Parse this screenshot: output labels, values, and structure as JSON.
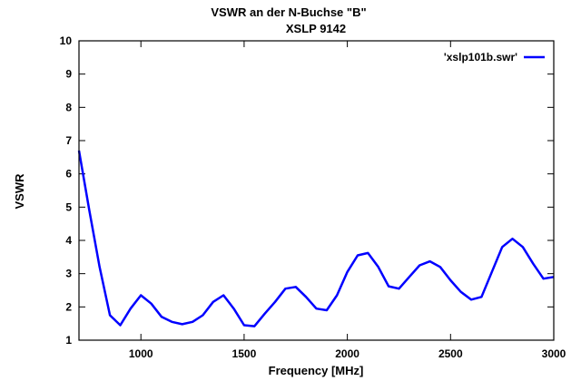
{
  "chart_data": {
    "type": "line",
    "title": "VSWR an der N-Buchse \"B\"",
    "subtitle": "XSLP 9142",
    "xlabel": "Frequency [MHz]",
    "ylabel": "VSWR",
    "xlim": [
      700,
      3000
    ],
    "ylim": [
      1,
      10
    ],
    "xticks": [
      1000,
      1500,
      2000,
      2500,
      3000
    ],
    "xtick_labels": [
      "1000",
      "1500",
      "2000",
      "2500",
      "3000"
    ],
    "yticks": [
      1,
      2,
      3,
      4,
      5,
      6,
      7,
      8,
      9,
      10
    ],
    "ytick_labels": [
      "1",
      "2",
      "3",
      "4",
      "5",
      "6",
      "7",
      "8",
      "9",
      "10"
    ],
    "grid": false,
    "legend_position": "top-right",
    "series": [
      {
        "name": "'xslp101b.swr'",
        "color": "#0000ff",
        "x": [
          700,
          750,
          800,
          850,
          900,
          950,
          1000,
          1050,
          1100,
          1150,
          1200,
          1250,
          1300,
          1350,
          1400,
          1450,
          1500,
          1550,
          1600,
          1650,
          1700,
          1750,
          1800,
          1850,
          1900,
          1950,
          2000,
          2050,
          2100,
          2150,
          2200,
          2250,
          2300,
          2350,
          2400,
          2450,
          2500,
          2550,
          2600,
          2650,
          2700,
          2750,
          2800,
          2850,
          2900,
          2950,
          3000
        ],
        "y": [
          6.7,
          4.9,
          3.2,
          1.75,
          1.45,
          1.95,
          2.35,
          2.1,
          1.7,
          1.55,
          1.48,
          1.55,
          1.75,
          2.15,
          2.35,
          1.95,
          1.45,
          1.42,
          1.8,
          2.15,
          2.55,
          2.6,
          2.3,
          1.95,
          1.9,
          2.35,
          3.05,
          3.55,
          3.62,
          3.2,
          2.62,
          2.55,
          2.9,
          3.25,
          3.37,
          3.2,
          2.8,
          2.45,
          2.22,
          2.3,
          3.05,
          3.8,
          4.05,
          3.8,
          3.3,
          2.85,
          2.9
        ]
      }
    ]
  }
}
